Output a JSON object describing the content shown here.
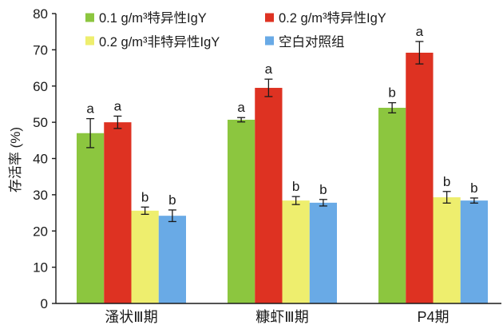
{
  "chart_data": {
    "type": "bar",
    "ylabel": "存活率 (%)",
    "ylim": [
      0,
      80
    ],
    "yticks": [
      0,
      10,
      20,
      30,
      40,
      50,
      60,
      70,
      80
    ],
    "grid": false,
    "legend": "top",
    "categories": [
      "溞状Ⅲ期",
      "糠虾Ⅲ期",
      "P4期"
    ],
    "series": [
      {
        "name": "0.1 g/m³特异性IgY",
        "color": "#8cc63f",
        "values": [
          47.0,
          50.7,
          54.0
        ],
        "errors": [
          4.0,
          0.6,
          1.4
        ],
        "labels": [
          "a",
          "a",
          "b"
        ]
      },
      {
        "name": "0.2 g/m³特异性IgY",
        "color": "#de3222",
        "values": [
          50.0,
          59.5,
          69.2
        ],
        "errors": [
          1.7,
          2.4,
          3.1
        ],
        "labels": [
          "a",
          "a",
          "a"
        ]
      },
      {
        "name": "0.2 g/m³非特异性IgY",
        "color": "#eeee6e",
        "values": [
          25.6,
          28.4,
          29.3
        ],
        "errors": [
          1.0,
          1.1,
          1.6
        ],
        "labels": [
          "b",
          "b",
          "b"
        ]
      },
      {
        "name": "空白对照组",
        "color": "#69aae6",
        "values": [
          24.2,
          27.8,
          28.4
        ],
        "errors": [
          1.6,
          0.9,
          0.7
        ],
        "labels": [
          "b",
          "b",
          "b"
        ]
      }
    ]
  }
}
